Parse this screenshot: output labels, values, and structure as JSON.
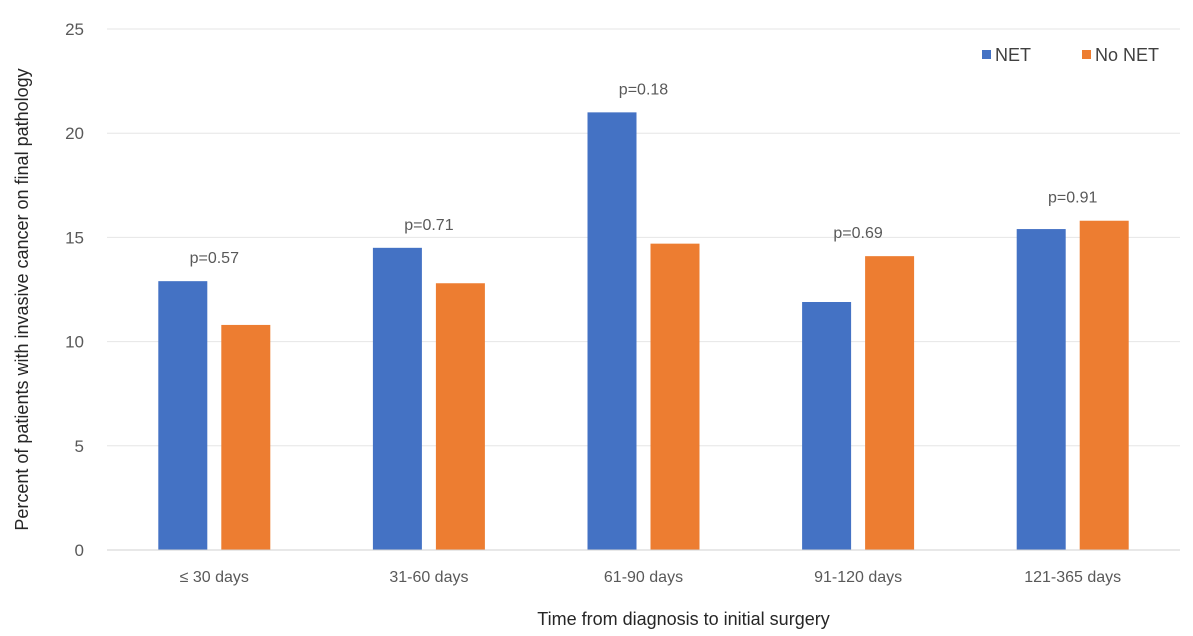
{
  "chart_data": {
    "type": "bar",
    "title": "",
    "xlabel": "Time from diagnosis to initial surgery",
    "ylabel": "Percent of patients with invasive cancer on final pathology",
    "ylim": [
      0,
      25
    ],
    "yticks": [
      0,
      5,
      10,
      15,
      20,
      25
    ],
    "grid": true,
    "legend_position": "top-right",
    "categories": [
      "≤ 30 days",
      "31-60 days",
      "61-90 days",
      "91-120 days",
      "121-365 days"
    ],
    "series": [
      {
        "name": "NET",
        "color": "#4472c4",
        "values": [
          12.9,
          14.5,
          21.0,
          11.9,
          15.4
        ]
      },
      {
        "name": "No NET",
        "color": "#ed7d31",
        "values": [
          10.8,
          12.8,
          14.7,
          14.1,
          15.8
        ]
      }
    ],
    "annotations": [
      "p=0.57",
      "p=0.71",
      "p=0.18",
      "p=0.69",
      "p=0.91"
    ]
  }
}
